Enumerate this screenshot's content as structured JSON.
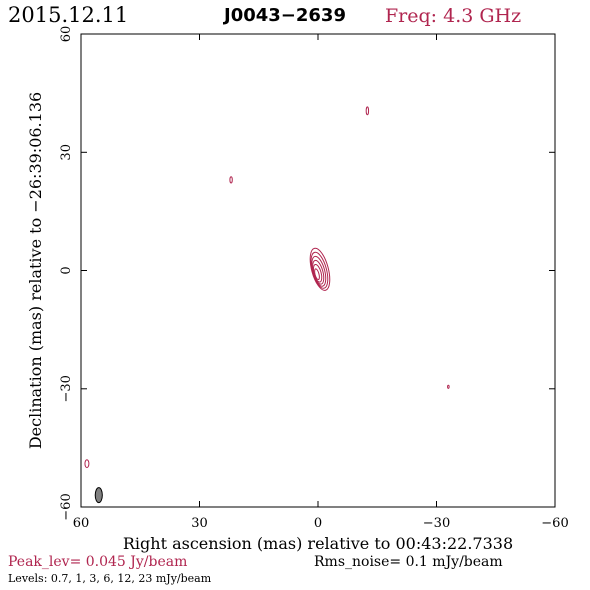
{
  "header": {
    "date": "2015.12.11",
    "source": "J0043−2639",
    "frequency": "Freq: 4.3 GHz"
  },
  "footer": {
    "peak": "Peak_lev=  0.045 Jy/beam",
    "rms": "Rms_noise=  0.1 mJy/beam",
    "levels": "Levels: 0.7,   1,   3,   6,  12,  23 mJy/beam"
  },
  "colors": {
    "accent": "#b0254f",
    "axis": "#000000",
    "beam_fill": "#808080"
  },
  "chart_data": {
    "type": "contour",
    "xlabel": "Right ascension (mas) relative to 00:43:22.7338",
    "ylabel": "Declination (mas) relative to −26:39:06.136",
    "xlim": [
      60,
      -60
    ],
    "ylim": [
      -60,
      60
    ],
    "xticks": [
      60,
      30,
      0,
      -30,
      -60
    ],
    "xtick_labels": [
      "60",
      "30",
      "0",
      "−30",
      "−60"
    ],
    "yticks": [
      -60,
      -30,
      0,
      30,
      60
    ],
    "ytick_labels": [
      "−60",
      "−30",
      "0",
      "30",
      "60"
    ],
    "contour_levels_mJy": [
      0.7,
      1,
      3,
      6,
      12,
      23
    ],
    "core": {
      "x": -0.5,
      "y": 0.3,
      "rx": [
        2.1,
        1.8,
        1.5,
        1.2,
        0.9,
        0.5
      ],
      "ry": [
        5.5,
        4.7,
        3.9,
        3.1,
        2.3,
        1.4
      ],
      "tilt_deg": -15
    },
    "minor_components": [
      {
        "x": -12.5,
        "y": 40.5,
        "rx": 0.3,
        "ry": 1.0
      },
      {
        "x": 22.0,
        "y": 23.0,
        "rx": 0.3,
        "ry": 0.8
      },
      {
        "x": -33.0,
        "y": -29.5,
        "rx": 0.2,
        "ry": 0.4
      },
      {
        "x": 58.5,
        "y": -49.0,
        "rx": 0.5,
        "ry": 1.0
      }
    ],
    "beam": {
      "x": 55.5,
      "y": -57.0,
      "rx": 0.9,
      "ry": 1.9
    }
  }
}
